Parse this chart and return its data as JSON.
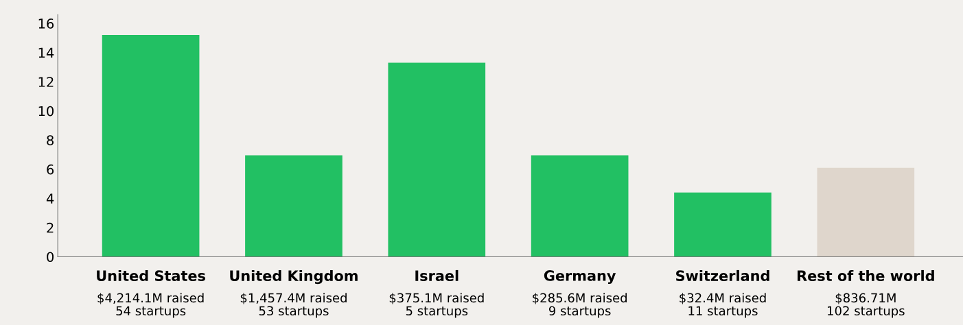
{
  "chart_data": {
    "type": "bar",
    "categories": [
      "United States",
      "United Kingdom",
      "Israel",
      "Germany",
      "Switzerland",
      "Rest of the world"
    ],
    "values": [
      15.2,
      6.95,
      13.3,
      6.95,
      4.4,
      6.1
    ],
    "colors": [
      "#22c063",
      "#22c063",
      "#22c063",
      "#22c063",
      "#22c063",
      "#dfd6cc"
    ],
    "annotations": [
      "$4,214.1M raised\n54 startups",
      "$1,457.4M raised\n53 startups",
      "$375.1M raised\n5 startups",
      "$285.6M raised\n9 startups",
      "$32.4M raised\n11 startups",
      "$836.71M\n102 startups"
    ],
    "ylim": [
      0,
      16.6
    ],
    "yticks": [
      0,
      2,
      4,
      6,
      8,
      10,
      12,
      14,
      16
    ],
    "grid": false
  }
}
